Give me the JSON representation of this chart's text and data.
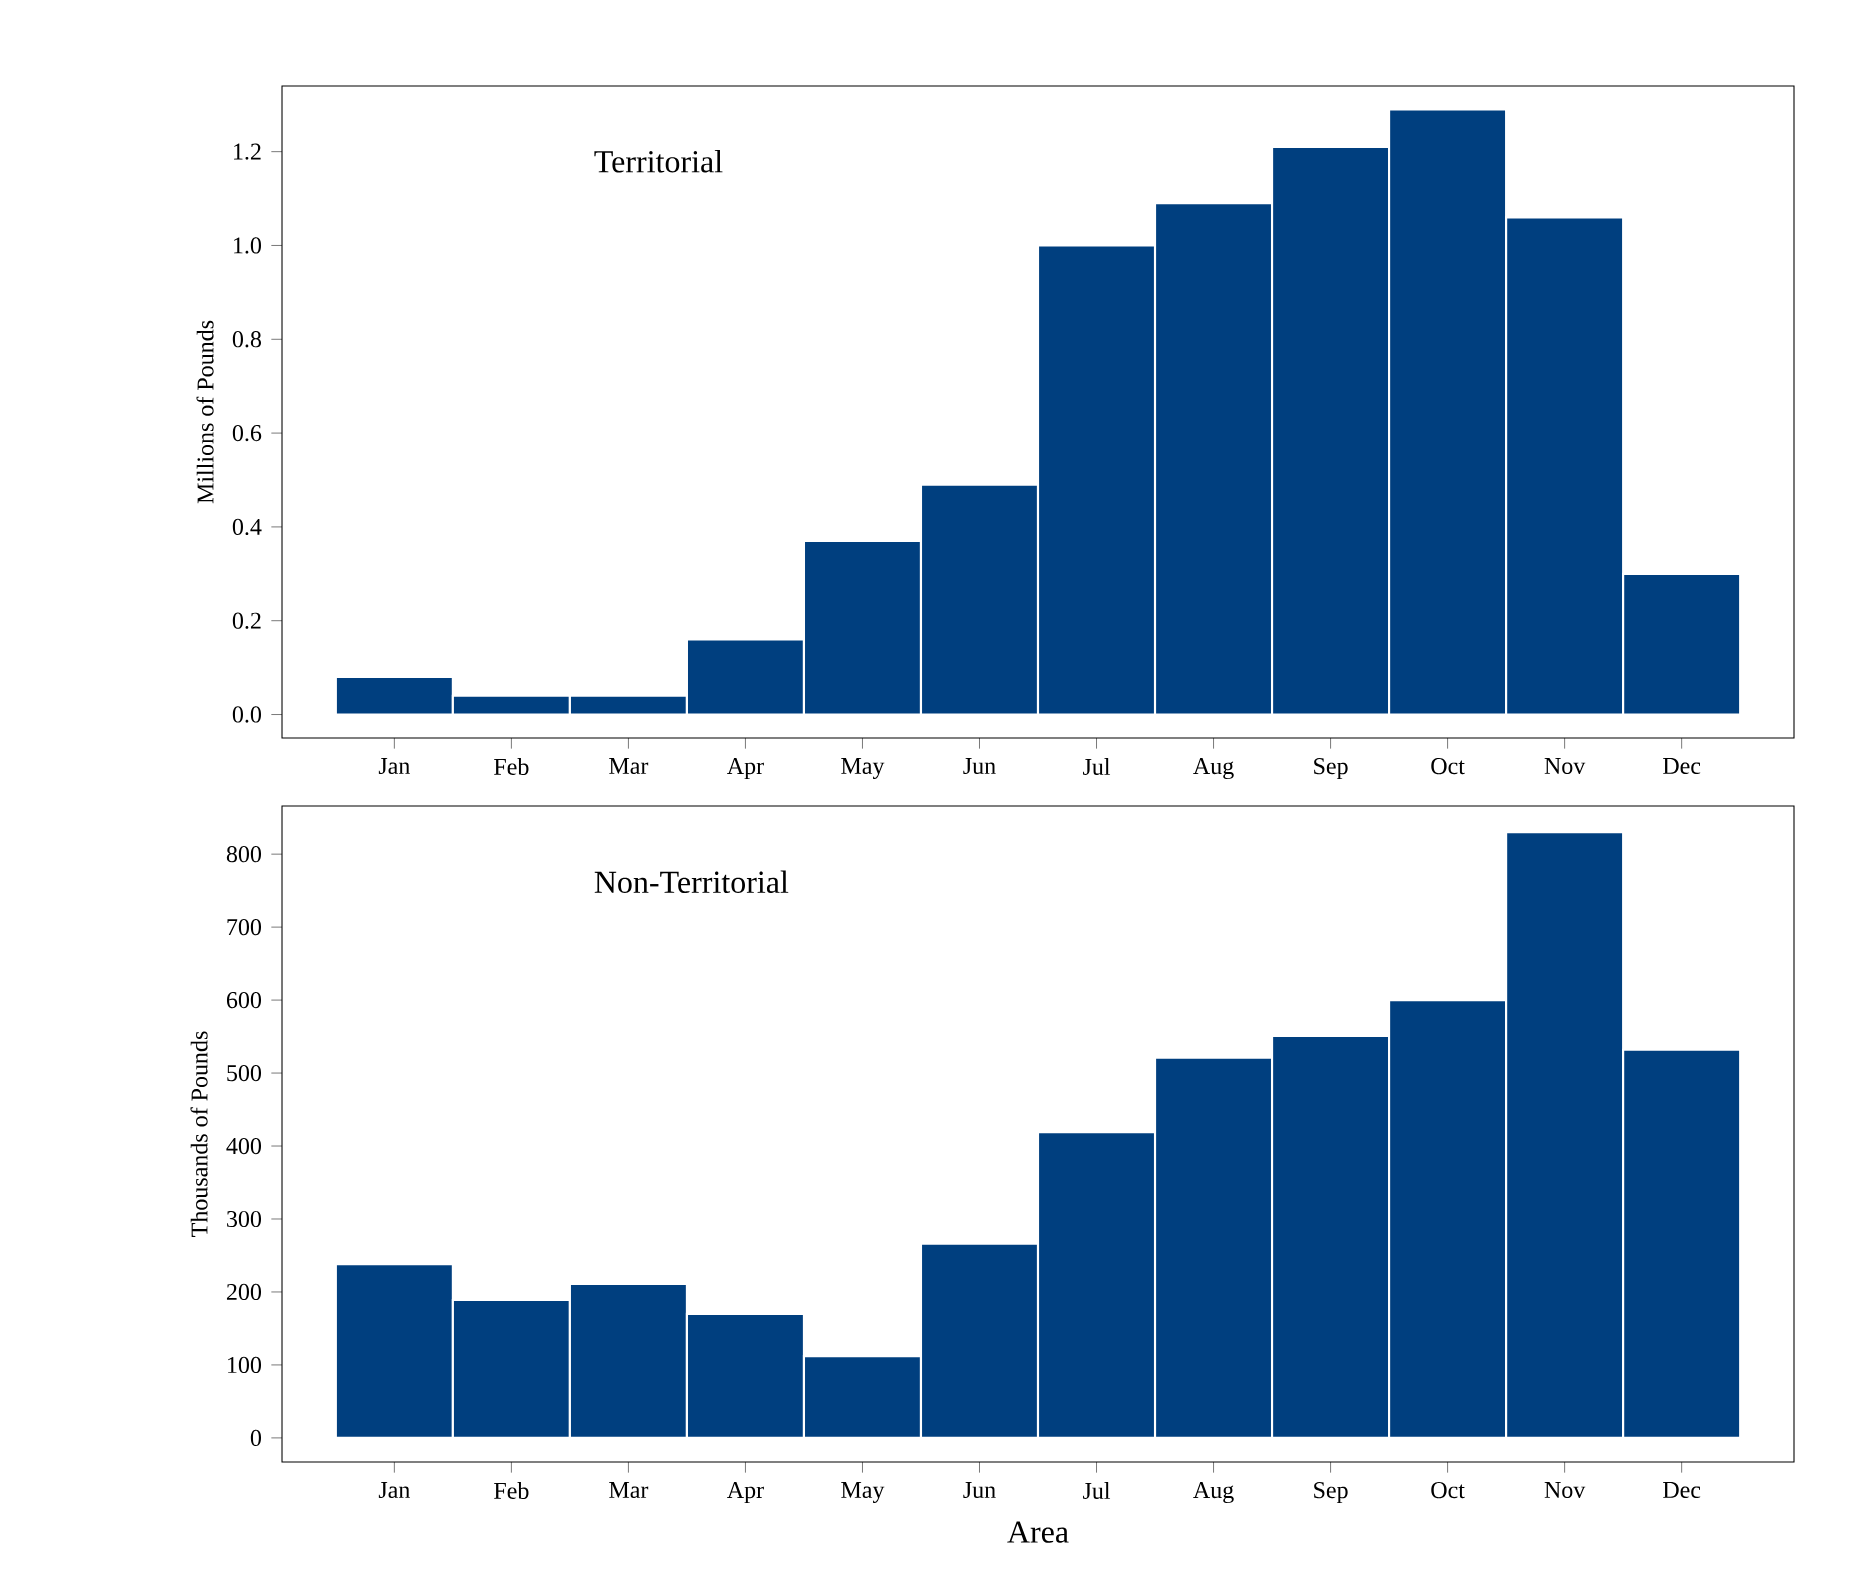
{
  "chart_data": [
    {
      "type": "bar",
      "title": "Territorial",
      "ylabel": "Millions of Pounds",
      "categories": [
        "Jan",
        "Feb",
        "Mar",
        "Apr",
        "May",
        "Jun",
        "Jul",
        "Aug",
        "Sep",
        "Oct",
        "Nov",
        "Dec"
      ],
      "values": [
        0.08,
        0.04,
        0.04,
        0.16,
        0.37,
        0.49,
        1.0,
        1.09,
        1.21,
        1.29,
        1.06,
        0.3
      ],
      "color": "#003f7f",
      "ylim": [
        -0.05,
        1.34
      ],
      "yticks": [
        {
          "value": 0,
          "label": "0.0"
        },
        {
          "value": 0.2,
          "label": "0.2"
        },
        {
          "value": 0.4,
          "label": "0.4"
        },
        {
          "value": 0.6,
          "label": "0.6"
        },
        {
          "value": 0.8,
          "label": "0.8"
        },
        {
          "value": 1,
          "label": "1.0"
        },
        {
          "value": 1.2,
          "label": "1.2"
        }
      ]
    },
    {
      "type": "bar",
      "title": "Non-Territorial",
      "ylabel": "Thousands of Pounds",
      "xlabel": "Area",
      "categories": [
        "Jan",
        "Feb",
        "Mar",
        "Apr",
        "May",
        "Jun",
        "Jul",
        "Aug",
        "Sep",
        "Oct",
        "Nov",
        "Dec"
      ],
      "values": [
        238,
        189,
        211,
        170,
        112,
        266,
        419,
        521,
        551,
        600,
        830,
        532
      ],
      "color": "#003f7f",
      "ylim": [
        -33,
        866
      ],
      "yticks": [
        0,
        100,
        200,
        300,
        400,
        500,
        600,
        700,
        800
      ]
    }
  ]
}
